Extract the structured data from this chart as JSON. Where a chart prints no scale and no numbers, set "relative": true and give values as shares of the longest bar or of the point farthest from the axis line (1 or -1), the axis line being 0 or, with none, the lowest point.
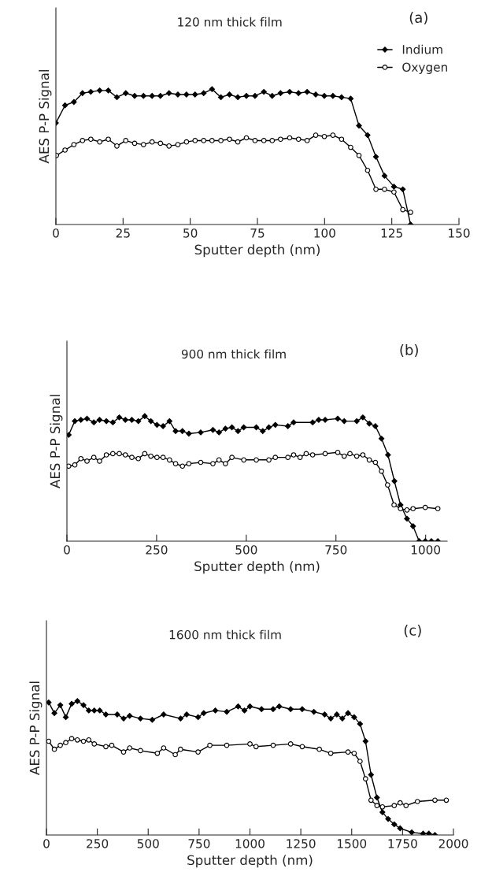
{
  "chart_data": [
    {
      "type": "line",
      "title": "120 nm thick film",
      "annotations": [
        "(a)"
      ],
      "xlabel": "Sputter depth (nm)",
      "ylabel": "AES P-P Signal",
      "relative": true,
      "xlim": [
        0,
        150
      ],
      "xticks": [
        0,
        25,
        50,
        75,
        100,
        125,
        150
      ],
      "legend": "top right",
      "grid": false,
      "series": [
        {
          "name": "Indium",
          "color": "#000000",
          "marker": "diamond",
          "x": [
            0,
            3.4,
            6.7,
            9.9,
            13,
            16.3,
            19.5,
            22.7,
            26,
            29.3,
            32.6,
            35.8,
            38.9,
            42.1,
            45.4,
            48.6,
            51.8,
            55,
            58.1,
            61.4,
            64.6,
            67.7,
            70.9,
            74.1,
            77.4,
            80.5,
            83.6,
            87,
            90.3,
            93.5,
            96.7,
            99.9,
            103.1,
            106.3,
            109.7,
            112.8,
            116,
            119.1,
            122.3,
            125.8,
            129.1,
            132
          ],
          "values": [
            0.75,
            0.88,
            0.905,
            0.97,
            0.98,
            0.99,
            0.99,
            0.94,
            0.97,
            0.95,
            0.95,
            0.95,
            0.95,
            0.97,
            0.96,
            0.96,
            0.96,
            0.97,
            1,
            0.94,
            0.96,
            0.94,
            0.95,
            0.95,
            0.98,
            0.95,
            0.97,
            0.98,
            0.97,
            0.98,
            0.96,
            0.95,
            0.95,
            0.94,
            0.93,
            0.73,
            0.66,
            0.5,
            0.36,
            0.28,
            0.26,
            0
          ]
        },
        {
          "name": "Oxygen",
          "color": "#000000",
          "marker": "circle",
          "x": [
            0.2,
            3.4,
            6.7,
            9.9,
            13,
            16.3,
            19.5,
            22.7,
            26,
            29.3,
            32.6,
            35.8,
            38.9,
            42.1,
            45.4,
            48.6,
            51.8,
            55,
            58.1,
            61.4,
            64.6,
            67.7,
            70.9,
            74.1,
            77.4,
            80.5,
            83.6,
            87,
            90.3,
            93.5,
            96.7,
            99.9,
            103.1,
            106.3,
            109.7,
            112.8,
            116,
            119.1,
            122.3,
            125.8,
            129.1,
            132
          ],
          "values": [
            0.51,
            0.55,
            0.59,
            0.62,
            0.63,
            0.61,
            0.63,
            0.58,
            0.62,
            0.6,
            0.59,
            0.61,
            0.6,
            0.58,
            0.59,
            0.61,
            0.62,
            0.62,
            0.62,
            0.62,
            0.63,
            0.61,
            0.64,
            0.62,
            0.62,
            0.62,
            0.63,
            0.64,
            0.63,
            0.62,
            0.66,
            0.65,
            0.66,
            0.63,
            0.57,
            0.51,
            0.4,
            0.26,
            0.26,
            0.24,
            0.11,
            0.09
          ]
        }
      ]
    },
    {
      "type": "line",
      "title": "900 nm thick film",
      "annotations": [
        "(b)"
      ],
      "xlabel": "Sputter depth (nm)",
      "ylabel": "AES P-P Signal",
      "relative": true,
      "xlim": [
        0,
        1060
      ],
      "xticks": [
        0,
        250,
        500,
        750,
        1000
      ],
      "grid": false,
      "series": [
        {
          "color": "#000000",
          "marker": "diamond",
          "x": [
            5,
            22,
            39,
            56,
            75,
            91,
            110,
            128,
            146,
            163,
            181,
            199,
            217,
            234,
            251,
            268,
            286,
            303,
            322,
            340,
            373,
            407,
            424,
            442,
            460,
            477,
            493,
            528,
            546,
            563,
            581,
            616,
            632,
            685,
            702,
            720,
            755,
            773,
            808,
            825,
            843,
            860,
            877,
            895,
            913,
            930,
            948,
            965,
            982,
            999,
            1016,
            1034
          ],
          "values": [
            0.85,
            0.96,
            0.97,
            0.98,
            0.95,
            0.97,
            0.96,
            0.95,
            0.99,
            0.97,
            0.97,
            0.96,
            1,
            0.96,
            0.93,
            0.92,
            0.96,
            0.88,
            0.88,
            0.86,
            0.87,
            0.89,
            0.87,
            0.9,
            0.91,
            0.88,
            0.91,
            0.91,
            0.88,
            0.91,
            0.93,
            0.92,
            0.95,
            0.95,
            0.97,
            0.97,
            0.98,
            0.96,
            0.96,
            0.99,
            0.94,
            0.92,
            0.82,
            0.69,
            0.48,
            0.29,
            0.18,
            0.12,
            0,
            0,
            0,
            0
          ]
        },
        {
          "color": "#000000",
          "marker": "circle",
          "x": [
            5,
            22,
            39,
            56,
            75,
            91,
            110,
            128,
            146,
            163,
            181,
            199,
            217,
            234,
            251,
            268,
            286,
            303,
            322,
            340,
            373,
            407,
            424,
            442,
            460,
            493,
            528,
            563,
            581,
            616,
            632,
            650,
            667,
            685,
            720,
            755,
            773,
            789,
            808,
            825,
            843,
            860,
            877,
            894,
            912,
            930,
            948,
            965,
            999,
            1034
          ],
          "values": [
            0.6,
            0.61,
            0.66,
            0.64,
            0.67,
            0.64,
            0.69,
            0.7,
            0.7,
            0.69,
            0.67,
            0.66,
            0.7,
            0.68,
            0.67,
            0.67,
            0.65,
            0.62,
            0.6,
            0.62,
            0.63,
            0.62,
            0.65,
            0.62,
            0.67,
            0.65,
            0.65,
            0.65,
            0.67,
            0.67,
            0.69,
            0.67,
            0.7,
            0.69,
            0.7,
            0.71,
            0.68,
            0.7,
            0.68,
            0.69,
            0.65,
            0.63,
            0.56,
            0.45,
            0.29,
            0.26,
            0.25,
            0.26,
            0.27,
            0.26
          ]
        }
      ]
    },
    {
      "type": "line",
      "title": "1600 nm thick film",
      "annotations": [
        "(c)"
      ],
      "xlabel": "Sputter depth (nm)",
      "ylabel": "AES P-P Signal",
      "relative": true,
      "xlim": [
        0,
        2000
      ],
      "xticks": [
        0,
        250,
        500,
        750,
        1000,
        1250,
        1500,
        1750,
        2000
      ],
      "grid": false,
      "series": [
        {
          "color": "#000000",
          "marker": "diamond",
          "x": [
            11,
            39,
            68,
            95,
            124,
            152,
            182,
            208,
            235,
            262,
            292,
            348,
            379,
            409,
            462,
            520,
            576,
            659,
            689,
            745,
            773,
            830,
            886,
            942,
            973,
            1000,
            1057,
            1114,
            1144,
            1200,
            1257,
            1314,
            1367,
            1397,
            1427,
            1454,
            1482,
            1512,
            1541,
            1568,
            1595,
            1624,
            1651,
            1679,
            1709,
            1738,
            1795,
            1851,
            1879,
            1909
          ],
          "values": [
            0.99,
            0.91,
            0.97,
            0.88,
            0.98,
            1,
            0.97,
            0.93,
            0.93,
            0.93,
            0.9,
            0.9,
            0.87,
            0.89,
            0.87,
            0.86,
            0.9,
            0.87,
            0.9,
            0.88,
            0.91,
            0.93,
            0.92,
            0.96,
            0.93,
            0.96,
            0.94,
            0.94,
            0.96,
            0.94,
            0.94,
            0.92,
            0.9,
            0.87,
            0.9,
            0.87,
            0.91,
            0.88,
            0.83,
            0.7,
            0.45,
            0.28,
            0.17,
            0.12,
            0.08,
            0.05,
            0.02,
            0.01,
            0.01,
            0
          ]
        },
        {
          "color": "#000000",
          "marker": "circle",
          "x": [
            11,
            39,
            68,
            95,
            124,
            152,
            182,
            208,
            235,
            292,
            321,
            379,
            409,
            462,
            545,
            576,
            633,
            659,
            745,
            803,
            886,
            1000,
            1030,
            1114,
            1200,
            1257,
            1341,
            1397,
            1482,
            1512,
            1541,
            1568,
            1595,
            1624,
            1651,
            1709,
            1738,
            1767,
            1823,
            1909,
            1965
          ],
          "values": [
            0.7,
            0.64,
            0.67,
            0.69,
            0.72,
            0.71,
            0.7,
            0.71,
            0.68,
            0.66,
            0.67,
            0.62,
            0.65,
            0.63,
            0.61,
            0.65,
            0.6,
            0.64,
            0.62,
            0.67,
            0.67,
            0.68,
            0.66,
            0.67,
            0.68,
            0.66,
            0.64,
            0.61,
            0.62,
            0.61,
            0.55,
            0.42,
            0.26,
            0.22,
            0.21,
            0.22,
            0.24,
            0.22,
            0.25,
            0.26,
            0.26
          ]
        }
      ]
    }
  ]
}
